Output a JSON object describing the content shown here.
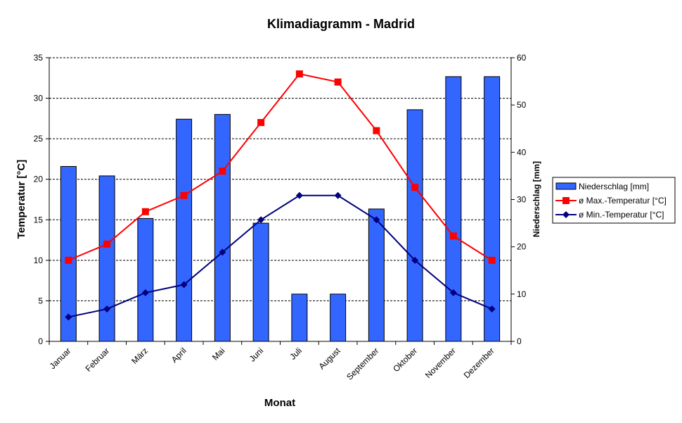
{
  "chart_data": {
    "type": "bar+line",
    "title": "Klimadiagramm - Madrid",
    "xlabel": "Monat",
    "ylabel": "Temperatur [°C]",
    "ylabel_right": "Niederschlag [mm]",
    "ylim": [
      0,
      35
    ],
    "ylim_right": [
      0,
      60
    ],
    "yticks": [
      "0",
      "5",
      "10",
      "15",
      "20",
      "25",
      "30",
      "35"
    ],
    "yticks_right": [
      "0",
      "10",
      "20",
      "30",
      "40",
      "50",
      "60"
    ],
    "grid": true,
    "legend_position": "right",
    "categories": [
      "Januar",
      "Februar",
      "März",
      "April",
      "Mai",
      "Juni",
      "Juli",
      "August",
      "September",
      "Oktober",
      "November",
      "Dezember"
    ],
    "series": [
      {
        "name": "Niederschlag [mm]",
        "type": "bar",
        "axis": "right",
        "color": "#3366ff",
        "values": [
          37,
          35,
          26,
          47,
          48,
          25,
          10,
          10,
          28,
          49,
          56,
          56
        ]
      },
      {
        "name": "ø Max.-Temperatur [°C]",
        "type": "line",
        "axis": "left",
        "color": "#ff0000",
        "marker": "square",
        "values": [
          10,
          12,
          16,
          18,
          21,
          27,
          33,
          32,
          26,
          19,
          13,
          10
        ]
      },
      {
        "name": "ø Min.-Temperatur [°C]",
        "type": "line",
        "axis": "left",
        "color": "#000080",
        "marker": "diamond",
        "values": [
          3,
          4,
          6,
          7,
          11,
          15,
          18,
          18,
          15,
          10,
          6,
          4
        ]
      }
    ]
  }
}
